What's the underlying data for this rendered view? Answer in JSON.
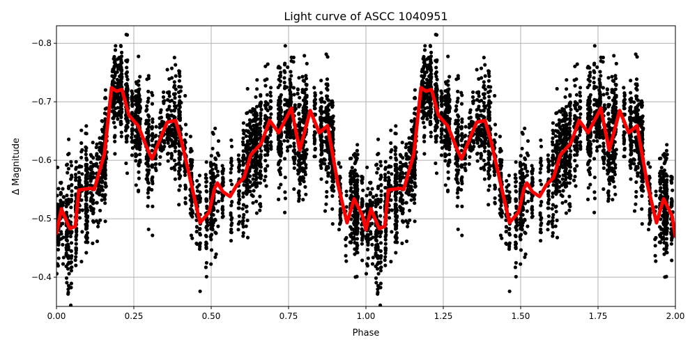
{
  "figure": {
    "title": "Light curve of ASCC 1040951",
    "xlabel": "Phase",
    "ylabel": "Δ Magnitude"
  },
  "chart_data": {
    "type": "scatter",
    "title": "Light curve of ASCC 1040951",
    "xlabel": "Phase",
    "ylabel": "Δ Magnitude",
    "xlim": [
      0.0,
      2.0
    ],
    "ylim": [
      -0.35,
      -0.83
    ],
    "y_inverted": true,
    "grid": true,
    "legend": null,
    "x_ticks": [
      0.0,
      0.25,
      0.5,
      0.75,
      1.0,
      1.25,
      1.5,
      1.75,
      2.0
    ],
    "x_tick_labels": [
      "0.00",
      "0.25",
      "0.50",
      "0.75",
      "1.00",
      "1.25",
      "1.50",
      "1.75",
      "2.00"
    ],
    "y_ticks": [
      -0.8,
      -0.7,
      -0.6,
      -0.5,
      -0.4
    ],
    "y_tick_labels": [
      "−0.8",
      "−0.7",
      "−0.6",
      "−0.5",
      "−0.4"
    ],
    "series": [
      {
        "name": "observations",
        "kind": "scatter-with-errorbars",
        "color": "#000000",
        "description": "Dense black data points (phase-folded photometry, repeated for phase 0-1 and 1-2) with small vertical error bars; spread roughly ±0.07 mag around the binned curve"
      },
      {
        "name": "binned mean",
        "kind": "line",
        "color": "#ff0000",
        "linewidth": 5,
        "x": [
          0.0,
          0.016,
          0.043,
          0.061,
          0.072,
          0.11,
          0.122,
          0.155,
          0.178,
          0.194,
          0.212,
          0.234,
          0.264,
          0.291,
          0.309,
          0.34,
          0.358,
          0.385,
          0.403,
          0.426,
          0.464,
          0.493,
          0.511,
          0.52,
          0.538,
          0.561,
          0.583,
          0.606,
          0.628,
          0.662,
          0.689,
          0.718,
          0.759,
          0.786,
          0.82,
          0.849,
          0.876,
          0.91,
          0.939,
          0.962,
          0.989,
          1.0,
          1.016,
          1.043,
          1.061,
          1.072,
          1.11,
          1.122,
          1.155,
          1.178,
          1.194,
          1.212,
          1.234,
          1.264,
          1.291,
          1.309,
          1.34,
          1.358,
          1.385,
          1.403,
          1.426,
          1.464,
          1.493,
          1.511,
          1.52,
          1.538,
          1.561,
          1.583,
          1.606,
          1.628,
          1.662,
          1.689,
          1.718,
          1.759,
          1.786,
          1.82,
          1.849,
          1.876,
          1.91,
          1.939,
          1.962,
          1.989,
          2.0
        ],
        "y": [
          -0.475,
          -0.517,
          -0.483,
          -0.487,
          -0.549,
          -0.552,
          -0.55,
          -0.611,
          -0.724,
          -0.718,
          -0.721,
          -0.677,
          -0.659,
          -0.623,
          -0.602,
          -0.643,
          -0.665,
          -0.668,
          -0.635,
          -0.582,
          -0.493,
          -0.511,
          -0.552,
          -0.561,
          -0.546,
          -0.538,
          -0.558,
          -0.57,
          -0.609,
          -0.629,
          -0.668,
          -0.647,
          -0.689,
          -0.617,
          -0.685,
          -0.647,
          -0.659,
          -0.558,
          -0.493,
          -0.534,
          -0.505,
          -0.481,
          -0.517,
          -0.483,
          -0.487,
          -0.549,
          -0.552,
          -0.55,
          -0.611,
          -0.724,
          -0.718,
          -0.721,
          -0.677,
          -0.659,
          -0.623,
          -0.602,
          -0.643,
          -0.665,
          -0.668,
          -0.635,
          -0.582,
          -0.493,
          -0.511,
          -0.552,
          -0.561,
          -0.546,
          -0.538,
          -0.558,
          -0.57,
          -0.609,
          -0.629,
          -0.668,
          -0.647,
          -0.689,
          -0.617,
          -0.685,
          -0.647,
          -0.659,
          -0.558,
          -0.493,
          -0.534,
          -0.505,
          -0.47
        ]
      }
    ]
  },
  "colors": {
    "points": "#000000",
    "curve": "#ff0000",
    "grid": "#b0b0b0",
    "axes": "#000000",
    "background": "#ffffff"
  }
}
